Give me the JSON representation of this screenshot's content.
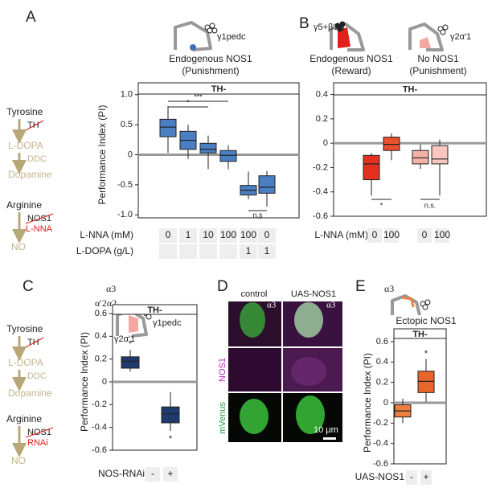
{
  "panel_labels": [
    "A",
    "B",
    "C",
    "D",
    "E"
  ],
  "pathway_a": {
    "steps": [
      "Tyrosine",
      "L-DOPA",
      "Dopamine",
      "Arginine",
      "NO"
    ],
    "enzymes": [
      "TH",
      "DDC",
      "NOS1"
    ],
    "inhibitor": "L-NNA"
  },
  "pathway_c": {
    "steps": [
      "Tyrosine",
      "L-DOPA",
      "Dopamine",
      "Arginine",
      "NO"
    ],
    "enzymes": [
      "TH",
      "DDC",
      "NOS1"
    ],
    "inhibitor": "RNAi"
  },
  "panel_a_header": {
    "region": "γ1pedc",
    "title": "Endogenous NOS1",
    "subtitle": "(Punishment)"
  },
  "panel_b_header": {
    "left_region": "γ5+β′2a",
    "left_title": "Endogenous NOS1",
    "left_subtitle": "(Reward)",
    "right_title": "No NOS1",
    "right_subtitle": "(Punishment)",
    "right_region": "γ2α′1"
  },
  "panel_c_header": {
    "regions": [
      "α3",
      "α′2α2",
      "γ1pedc",
      "γ2α′1"
    ]
  },
  "panel_d": {
    "columns": [
      "control",
      "UAS-NOS1"
    ],
    "region_labels": [
      "α3",
      "α3"
    ],
    "rows": [
      "NOS1",
      "mVenus"
    ],
    "scale_bar": "10 μm"
  },
  "panel_e_header": {
    "region": "α3",
    "title": "Ectopic NOS1"
  },
  "chart_data": [
    {
      "type": "box",
      "group_label": "TH-",
      "y_label": "Performance Index (PI)",
      "ylim": [
        -1.05,
        1.05
      ],
      "yticks": [
        {
          "value": 1,
          "label": "1.0"
        },
        0.5,
        0,
        -0.5,
        {
          "value": -1,
          "label": "-1.0"
        }
      ],
      "boxes": [
        {
          "color": "#4a7fc4",
          "min": 0.03,
          "q1": 0.3,
          "median": 0.46,
          "q3": 0.59,
          "max": 0.81
        },
        {
          "color": "#4a7fc4",
          "min": -0.07,
          "q1": 0.09,
          "median": 0.24,
          "q3": 0.39,
          "max": 0.5
        },
        {
          "color": "#4a7fc4",
          "min": -0.24,
          "q1": 0.03,
          "median": 0.09,
          "q3": 0.19,
          "max": 0.32
        },
        {
          "color": "#4a7fc4",
          "min": -0.24,
          "q1": -0.11,
          "median": -0.01,
          "q3": 0.07,
          "max": 0.16
        },
        {
          "color": "#4a7fc4",
          "min": -0.74,
          "q1": -0.67,
          "median": -0.59,
          "q3": -0.51,
          "max": -0.28
        },
        {
          "color": "#4a7fc4",
          "min": -0.86,
          "q1": -0.64,
          "median": -0.54,
          "q3": -0.35,
          "max": -0.27
        }
      ],
      "conditions": [
        {
          "name": "L-NNA (mM)",
          "values": [
            "0",
            "1",
            "10",
            "100",
            "100",
            "0"
          ]
        },
        {
          "name": "L-DOPA (g/L)",
          "values": [
            null,
            null,
            null,
            null,
            "1",
            "1"
          ]
        }
      ],
      "significance": [
        "*",
        "***",
        "n.s"
      ]
    },
    {
      "type": "box",
      "group_label": "TH-",
      "ylim": [
        -0.6,
        0.45
      ],
      "yticks": [
        0.4,
        0.2,
        0,
        -0.2,
        -0.4,
        -0.6
      ],
      "boxes": [
        {
          "color": "#e3301f",
          "min": -0.43,
          "q1": -0.3,
          "median": -0.17,
          "q3": -0.1,
          "max": -0.08
        },
        {
          "color": "#e8502e",
          "min": -0.14,
          "q1": -0.06,
          "median": -0.01,
          "q3": 0.05,
          "max": 0.08
        },
        {
          "color": "#f2b2a8",
          "min": -0.21,
          "q1": -0.17,
          "median": -0.12,
          "q3": -0.06,
          "max": -0.01
        },
        {
          "color": "#f7c6bf",
          "min": -0.43,
          "q1": -0.17,
          "median": -0.13,
          "q3": -0.02,
          "max": 0.03
        }
      ],
      "conditions": [
        {
          "name": "L-NNA (mM)",
          "values": [
            "0",
            "100",
            "0",
            "100"
          ]
        }
      ],
      "significance": [
        "*",
        "n.s."
      ]
    },
    {
      "type": "box",
      "group_label": "TH-",
      "y_label": "Performance Index (PI)",
      "ylim": [
        -0.6,
        0.6
      ],
      "yticks": [
        0.6,
        0.4,
        0.2,
        0,
        -0.2,
        -0.4,
        -0.6
      ],
      "boxes": [
        {
          "color": "#1f3a6c",
          "min": 0.09,
          "q1": 0.12,
          "median": 0.18,
          "q3": 0.22,
          "max": 0.28
        },
        {
          "color": "#1f3a6c",
          "min": -0.43,
          "q1": -0.36,
          "median": -0.28,
          "q3": -0.22,
          "max": -0.09
        }
      ],
      "conditions": [
        {
          "name": "NOS-RNAi",
          "values": [
            "-",
            "+"
          ]
        }
      ],
      "significance": [
        "*",
        "*"
      ]
    },
    {
      "type": "box",
      "group_label": "TH-",
      "y_label": "Performance Index (PI)",
      "ylim": [
        -0.6,
        0.6
      ],
      "yticks": [
        0.6,
        0.4,
        0.2,
        0,
        -0.2,
        -0.4,
        -0.6
      ],
      "boxes": [
        {
          "color": "#ef7f40",
          "min": -0.2,
          "q1": -0.14,
          "median": -0.08,
          "q3": -0.02,
          "max": 0.04
        },
        {
          "color": "#e8662c",
          "min": 0.01,
          "q1": 0.1,
          "median": 0.21,
          "q3": 0.31,
          "max": 0.43
        }
      ],
      "conditions": [
        {
          "name": "UAS-NOS1",
          "values": [
            "-",
            "+"
          ]
        }
      ],
      "significance": [
        "*"
      ]
    }
  ]
}
